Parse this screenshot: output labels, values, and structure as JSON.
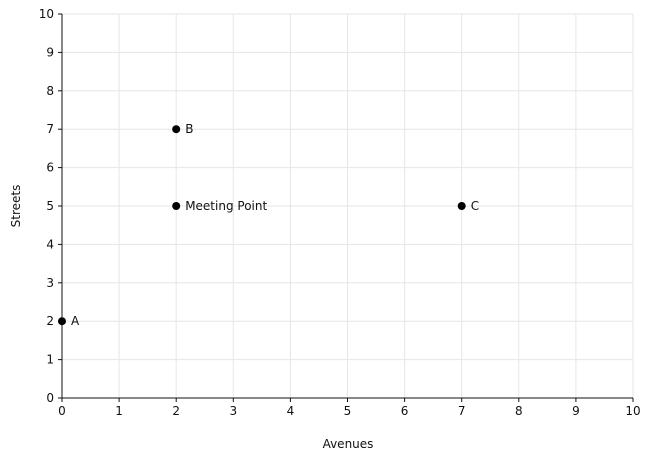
{
  "chart_data": {
    "type": "scatter",
    "title": "",
    "xlabel": "Avenues",
    "ylabel": "Streets",
    "xlim": [
      0,
      10
    ],
    "ylim": [
      0,
      10
    ],
    "x_ticks": [
      "0",
      "1",
      "2",
      "3",
      "4",
      "5",
      "6",
      "7",
      "8",
      "9",
      "10"
    ],
    "y_ticks": [
      "0",
      "1",
      "2",
      "3",
      "4",
      "5",
      "6",
      "7",
      "8",
      "9",
      "10"
    ],
    "grid": true,
    "points": [
      {
        "label": "A",
        "x": 0,
        "y": 2
      },
      {
        "label": "B",
        "x": 2,
        "y": 7
      },
      {
        "label": "Meeting Point",
        "x": 2,
        "y": 5
      },
      {
        "label": "C",
        "x": 7,
        "y": 5
      }
    ],
    "marker_color": "#000000",
    "grid_color": "#e6e6e6"
  }
}
